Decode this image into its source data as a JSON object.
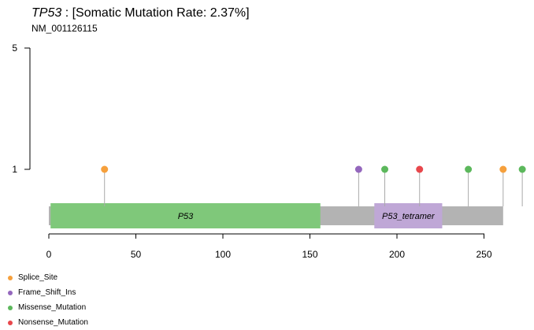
{
  "header": {
    "gene": "TP53",
    "rate_text": " : [Somatic Mutation Rate: 2.37%]",
    "transcript": "NM_001126115"
  },
  "chart_data": {
    "type": "lollipop",
    "x_range": [
      0,
      261
    ],
    "x_ticks": [
      0,
      50,
      100,
      150,
      200,
      250
    ],
    "y_ticks": [
      1,
      5
    ],
    "protein_length": 261,
    "domains": [
      {
        "name": "P53",
        "start": 1,
        "end": 156,
        "color": "#7fc87a"
      },
      {
        "name": "P53_tetramer",
        "start": 187,
        "end": 226,
        "color": "#bfa7d6"
      }
    ],
    "mutations": [
      {
        "position": 32,
        "count": 1,
        "type": "Splice_Site"
      },
      {
        "position": 178,
        "count": 1,
        "type": "Frame_Shift_Ins"
      },
      {
        "position": 193,
        "count": 1,
        "type": "Missense_Mutation"
      },
      {
        "position": 213,
        "count": 1,
        "type": "Nonsense_Mutation"
      },
      {
        "position": 241,
        "count": 1,
        "type": "Missense_Mutation"
      },
      {
        "position": 261,
        "count": 1,
        "type": "Splice_Site"
      },
      {
        "position": 272,
        "count": 1,
        "type": "Missense_Mutation"
      }
    ],
    "legend": [
      {
        "label": "Splice_Site",
        "color": "#f6a03c"
      },
      {
        "label": "Frame_Shift_Ins",
        "color": "#9467bd"
      },
      {
        "label": "Missense_Mutation",
        "color": "#5cb85c"
      },
      {
        "label": "Nonsense_Mutation",
        "color": "#e8474c"
      }
    ]
  }
}
